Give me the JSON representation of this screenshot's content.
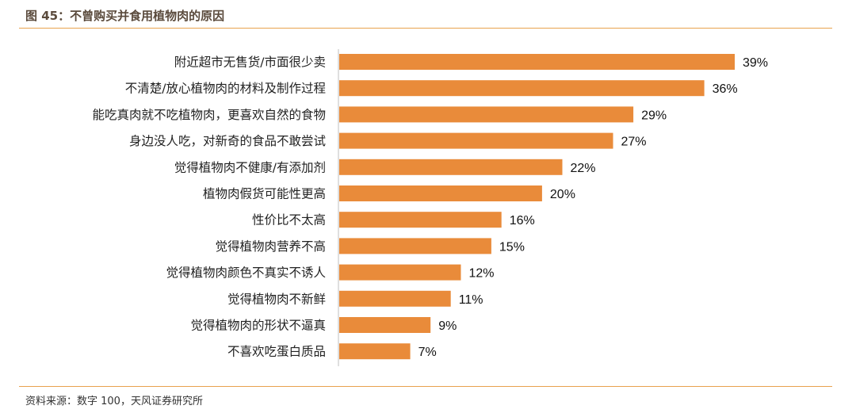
{
  "figure": {
    "title": "图 45：不曾购买并食用植物肉的原因",
    "source": "资料来源：数字 100，天风证券研究所"
  },
  "chart_data": {
    "type": "bar",
    "orientation": "horizontal",
    "categories": [
      "附近超市无售货/市面很少卖",
      "不清楚/放心植物肉的材料及制作过程",
      "能吃真肉就不吃植物肉，更喜欢自然的食物",
      "身边没人吃，对新奇的食品不敢尝试",
      "觉得植物肉不健康/有添加剂",
      "植物肉假货可能性更高",
      "性价比不太高",
      "觉得植物肉营养不高",
      "觉得植物肉颜色不真实不诱人",
      "觉得植物肉不新鲜",
      "觉得植物肉的形状不逼真",
      "不喜欢吃蛋白质品"
    ],
    "values": [
      39,
      36,
      29,
      27,
      22,
      20,
      16,
      15,
      12,
      11,
      9,
      7
    ],
    "value_labels": [
      "39%",
      "36%",
      "29%",
      "27%",
      "22%",
      "20%",
      "16%",
      "15%",
      "12%",
      "11%",
      "9%",
      "7%"
    ],
    "xlim": [
      0,
      39
    ],
    "unit": "%",
    "grid": false,
    "legend": "none",
    "bar_color": "#e98b3a",
    "axis_color": "#bfbfbf"
  }
}
